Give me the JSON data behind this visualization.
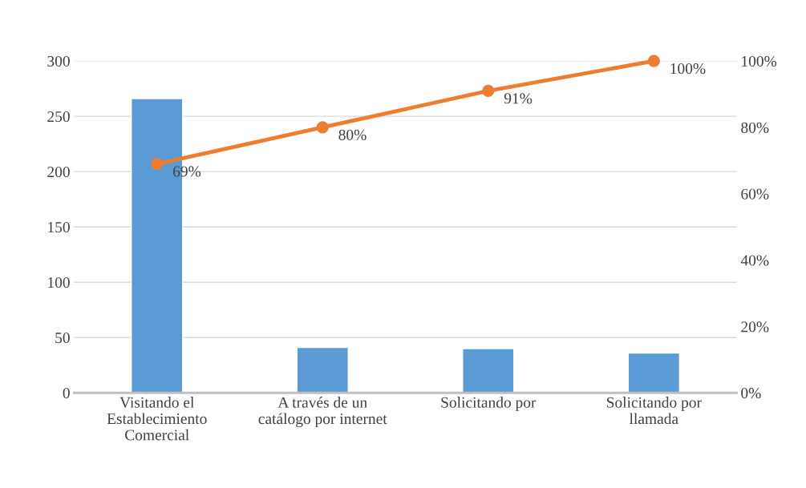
{
  "chart_data": {
    "type": "bar",
    "categories": [
      "Visitando el\nEstablecimiento\nComercial",
      "A través de un\ncatálogo por internet",
      "Solicitando por",
      "Solicitando por\nllamada"
    ],
    "series": [
      {
        "color": "#5b9bd5",
        "values": [
          266,
          41,
          40,
          36
        ]
      },
      {
        "type": "line",
        "axis": "y2",
        "color": "#ed7d31",
        "values": [
          69,
          80,
          91,
          100
        ],
        "value_labels": [
          "69%",
          "80%",
          "91%",
          "100%"
        ],
        "marker": "circle"
      }
    ],
    "ylim": [
      0,
      300
    ],
    "yticks": [
      0,
      50,
      100,
      150,
      200,
      250,
      300
    ],
    "y2lim": [
      0,
      100
    ],
    "y2ticks": [
      {
        "value": 0,
        "label": "0%"
      },
      {
        "value": 20,
        "label": "20%"
      },
      {
        "value": 40,
        "label": "40%"
      },
      {
        "value": 60,
        "label": "60%"
      },
      {
        "value": 80,
        "label": "80%"
      },
      {
        "value": 100,
        "label": "100%"
      }
    ],
    "grid": "y",
    "legend": false
  }
}
